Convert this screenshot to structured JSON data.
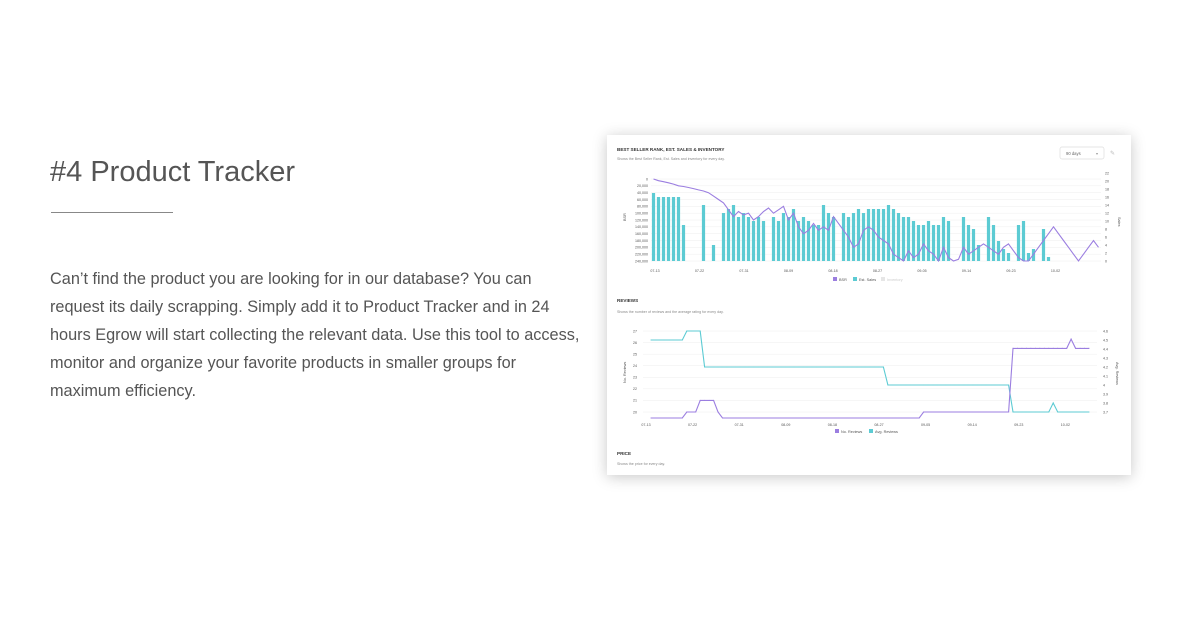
{
  "heading": "#4 Product Tracker",
  "description": "Can’t find the product you are looking for in our database? You can request its daily scrapping. Simply add it to Product Tracker and in 24 hours Egrow will start collecting the relevant data. Use this tool to access, monitor and organize your favorite products in smaller groups for maximum efficiency.",
  "screenshot": {
    "bsr_panel": {
      "title": "BEST SELLER RANK, EST. SALES & INVENTORY",
      "subtitle": "Shows the Best Seller Rank, Est. Sales and inventory for every day.",
      "range_select": "90 days",
      "edit_icon": "pencil-icon",
      "left_axis_label": "BSR",
      "right_axis_label": "Sales",
      "legend": [
        "BSR",
        "Est. Sales",
        "Inventory"
      ]
    },
    "reviews_panel": {
      "title": "REVIEWS",
      "subtitle": "Shows the number of reviews and the average rating for every day.",
      "left_axis_label": "No. Reviews",
      "right_axis_label": "Avg. Reviews",
      "legend": [
        "No. Reviews",
        "Avg. Reviews"
      ]
    },
    "price_panel": {
      "title": "PRICE",
      "subtitle": "Shows the price for every day."
    },
    "colors": {
      "purple": "#9b7ee0",
      "teal": "#5ccbd3",
      "legend_inventory": "#e6e6e6"
    }
  },
  "chart_data": [
    {
      "type": "bar",
      "title": "BEST SELLER RANK, EST. SALES & INVENTORY",
      "x_tick_labels": [
        "07-13",
        "07-22",
        "07-31",
        "08-09",
        "08-18",
        "08-27",
        "09-05",
        "09-14",
        "09-23",
        "10-02"
      ],
      "left_axis": {
        "label": "BSR",
        "ticks": [
          "0",
          "20,000",
          "40,000",
          "60,000",
          "80,000",
          "100,000",
          "120,000",
          "140,000",
          "160,000",
          "180,000",
          "200,000",
          "220,000",
          "240,000"
        ],
        "reversed": true
      },
      "right_axis": {
        "label": "Sales",
        "ticks": [
          "0",
          "2",
          "4",
          "6",
          "8",
          "10",
          "12",
          "14",
          "16",
          "18",
          "20",
          "22"
        ]
      },
      "series": [
        {
          "name": "Est. Sales",
          "type": "bar",
          "values": [
            17,
            16,
            16,
            16,
            16,
            16,
            9,
            0,
            0,
            0,
            14,
            0,
            4,
            0,
            12,
            13,
            14,
            11,
            12,
            11,
            10,
            11,
            10,
            0,
            11,
            10,
            12,
            11,
            13,
            10,
            11,
            10,
            9,
            9,
            14,
            12,
            11,
            0,
            12,
            11,
            12,
            13,
            12,
            13,
            13,
            13,
            13,
            14,
            13,
            12,
            11,
            11,
            10,
            9,
            9,
            10,
            9,
            9,
            11,
            10,
            0,
            0,
            11,
            9,
            8,
            4,
            0,
            11,
            9,
            5,
            3,
            2,
            0,
            9,
            10,
            2,
            3,
            0,
            8,
            1,
            0,
            0,
            0,
            0,
            0,
            0,
            0,
            0,
            0,
            0
          ]
        },
        {
          "name": "BSR",
          "type": "line",
          "values": [
            0,
            5000,
            8000,
            11000,
            15000,
            20000,
            22000,
            25000,
            28000,
            32000,
            35000,
            40000,
            50000,
            60000,
            70000,
            90000,
            110000,
            95000,
            105000,
            100000,
            120000,
            110000,
            95000,
            85000,
            100000,
            90000,
            80000,
            120000,
            100000,
            140000,
            160000,
            150000,
            130000,
            150000,
            140000,
            150000,
            110000,
            130000,
            150000,
            170000,
            200000,
            190000,
            150000,
            140000,
            150000,
            170000,
            180000,
            190000,
            220000,
            230000,
            240000,
            210000,
            230000,
            220000,
            190000,
            210000,
            220000,
            240000,
            200000,
            230000,
            240000,
            235000,
            200000,
            220000,
            210000,
            200000,
            190000,
            200000,
            210000,
            220000,
            200000,
            190000,
            210000,
            230000,
            240000,
            240000,
            220000,
            200000,
            180000,
            160000,
            140000,
            160000,
            180000,
            200000,
            220000,
            240000,
            220000,
            200000,
            180000,
            200000
          ]
        },
        {
          "name": "Inventory",
          "type": "line",
          "values": []
        }
      ]
    },
    {
      "type": "line",
      "title": "REVIEWS",
      "x_tick_labels": [
        "07-13",
        "07-22",
        "07-31",
        "08-09",
        "08-18",
        "08-27",
        "09-05",
        "09-14",
        "09-23",
        "10-02"
      ],
      "left_axis": {
        "label": "No. Reviews",
        "ticks": [
          "20",
          "21",
          "22",
          "23",
          "24",
          "25",
          "26",
          "27"
        ]
      },
      "right_axis": {
        "label": "Avg. Reviews",
        "ticks": [
          "3.7",
          "3.8",
          "3.9",
          "4",
          "4.1",
          "4.2",
          "4.3",
          "4.4",
          "4.5",
          "4.6"
        ]
      },
      "series": [
        {
          "name": "No. Reviews",
          "values": [
            19,
            19,
            19,
            19,
            19,
            19,
            19,
            19,
            20,
            20,
            20,
            21,
            21,
            21,
            21,
            20,
            19,
            19,
            19,
            19,
            19,
            19,
            19,
            19,
            19,
            19,
            19,
            19,
            19,
            19,
            19,
            19,
            19,
            19,
            19,
            19,
            19,
            19,
            19,
            19,
            19,
            19,
            19,
            19,
            19,
            19,
            19,
            19,
            19,
            19,
            19,
            19,
            19,
            19,
            19,
            19,
            19,
            19,
            19,
            19,
            19,
            20,
            20,
            20,
            20,
            20,
            20,
            20,
            20,
            20,
            20,
            20,
            20,
            20,
            20,
            20,
            20,
            20,
            20,
            20,
            20,
            25.5,
            25.5,
            25.5,
            25.5,
            25.5,
            25.5,
            25.5,
            25.5,
            25.5,
            25.5,
            25.5,
            25.5,
            25.5,
            26.3,
            25.5,
            25.5,
            25.5,
            25.5
          ]
        },
        {
          "name": "Avg. Reviews",
          "values": [
            4.5,
            4.5,
            4.5,
            4.5,
            4.5,
            4.5,
            4.5,
            4.5,
            4.6,
            4.6,
            4.6,
            4.6,
            4.2,
            4.2,
            4.2,
            4.2,
            4.2,
            4.2,
            4.2,
            4.2,
            4.2,
            4.2,
            4.2,
            4.2,
            4.2,
            4.2,
            4.2,
            4.2,
            4.2,
            4.2,
            4.2,
            4.2,
            4.2,
            4.2,
            4.2,
            4.2,
            4.2,
            4.2,
            4.2,
            4.2,
            4.2,
            4.2,
            4.2,
            4.2,
            4.2,
            4.2,
            4.2,
            4.2,
            4.2,
            4.2,
            4.2,
            4.2,
            4.2,
            4.0,
            4.0,
            4.0,
            4.0,
            4.0,
            4.0,
            4.0,
            4.0,
            4.0,
            4.0,
            4.0,
            4.0,
            4.0,
            4.0,
            4.0,
            4.0,
            4.0,
            4.0,
            4.0,
            4.0,
            4.0,
            4.0,
            4.0,
            4.0,
            4.0,
            4.0,
            4.0,
            4.0,
            3.7,
            3.7,
            3.7,
            3.7,
            3.7,
            3.7,
            3.7,
            3.7,
            3.7,
            3.8,
            3.7,
            3.7,
            3.7,
            3.7,
            3.7,
            3.7,
            3.7,
            3.7
          ]
        }
      ]
    }
  ]
}
